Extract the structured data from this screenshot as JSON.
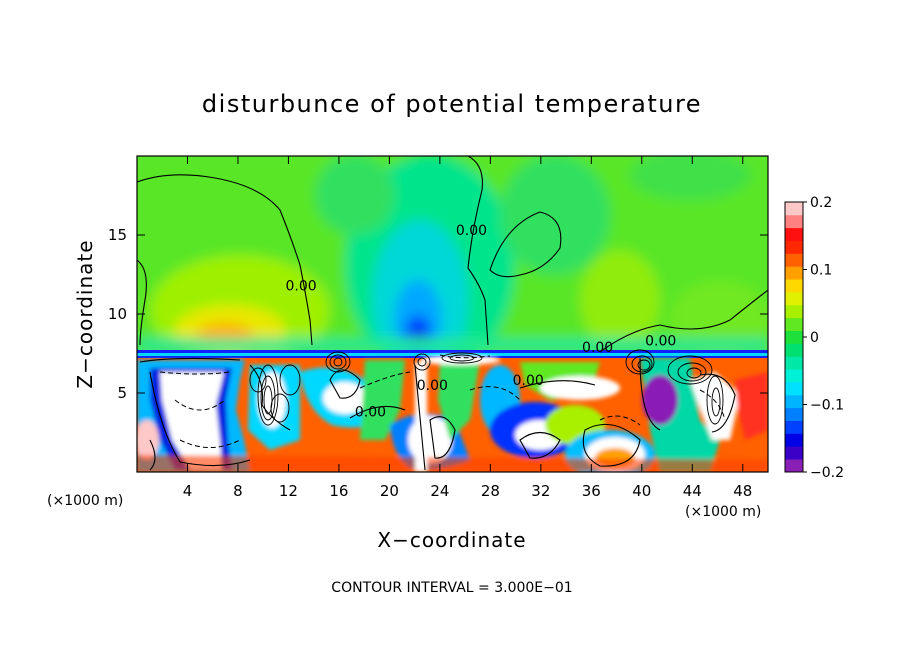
{
  "chart_data": {
    "type": "heatmap",
    "title": "disturbunce of potential temperature",
    "xlabel": "X−coordinate",
    "ylabel": "Z−coordinate",
    "x_unit": "(×1000 m)",
    "z_unit": "(×1000 m)",
    "xlim": [
      0,
      50
    ],
    "ylim": [
      0,
      20
    ],
    "x_ticks": [
      4,
      8,
      12,
      16,
      20,
      24,
      28,
      32,
      36,
      40,
      44,
      48
    ],
    "y_ticks": [
      5,
      10,
      15
    ],
    "colorbar": {
      "range": [
        -0.2,
        0.2
      ],
      "tick_values": [
        -0.2,
        -0.1,
        0,
        0.1,
        0.2
      ],
      "tick_labels": [
        "−0.2",
        "−0.1",
        "0",
        "0.1",
        "0.2"
      ],
      "colors": [
        "#8a1fb5",
        "#3b00c8",
        "#0000e6",
        "#0040ff",
        "#0080ff",
        "#00b4ff",
        "#00e0ff",
        "#00f0d8",
        "#00e8a8",
        "#00e070",
        "#1ee03a",
        "#60e820",
        "#a8f000",
        "#e0f000",
        "#ffd800",
        "#ffa000",
        "#ff6000",
        "#ff2800",
        "#ff1010",
        "#ff8080",
        "#ffc8c8"
      ]
    },
    "contour_labels": [
      {
        "text": "0.00",
        "x": 13.0,
        "z": 11.5
      },
      {
        "text": "0.00",
        "x": 26.5,
        "z": 15.0
      },
      {
        "text": "0.00",
        "x": 18.5,
        "z": 3.5
      },
      {
        "text": "0.00",
        "x": 31.0,
        "z": 5.5
      },
      {
        "text": "0.00",
        "x": 36.5,
        "z": 7.6
      },
      {
        "text": "0.00",
        "x": 41.5,
        "z": 8.0
      },
      {
        "text": "0.00",
        "x": 23.4,
        "z": 5.2
      }
    ],
    "contour_interval": "CONTOUR INTERVAL = 3.000E−01"
  }
}
